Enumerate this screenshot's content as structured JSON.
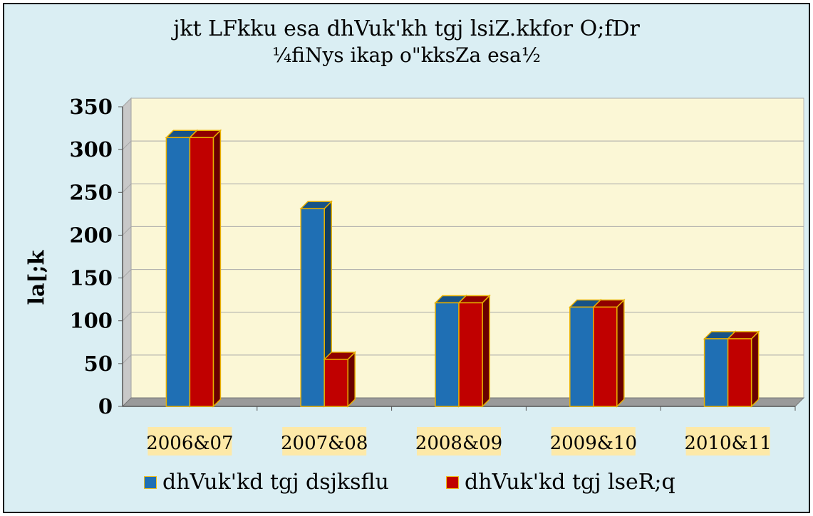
{
  "chart_data": {
    "type": "bar",
    "title": "jkt LFkku esa dhVuk'kh tgj lsiZ.kkfor O;fDr",
    "subtitle": "¼fiNys ikap o\"kksZa esa½",
    "ylabel": "la[;k",
    "xlabel": "",
    "ylim": [
      0,
      350
    ],
    "yticks": [
      0,
      50,
      100,
      150,
      200,
      250,
      300,
      350
    ],
    "categories": [
      "2006&07",
      "2007&08",
      "2008&09",
      "2009&10",
      "2010&11"
    ],
    "series": [
      {
        "name": "dhVuk'kd tgj dsjksflu",
        "color": "#1f6fb4",
        "values": [
          314,
          231,
          121,
          116,
          79
        ]
      },
      {
        "name": "dhVuk'kd tgj lseR;q",
        "color": "#c00000",
        "values": [
          314,
          55,
          121,
          116,
          79
        ]
      }
    ],
    "grid": true,
    "legend_position": "bottom",
    "plot_background": "#fbf7d6",
    "category_label_background": "#fde9a8"
  }
}
